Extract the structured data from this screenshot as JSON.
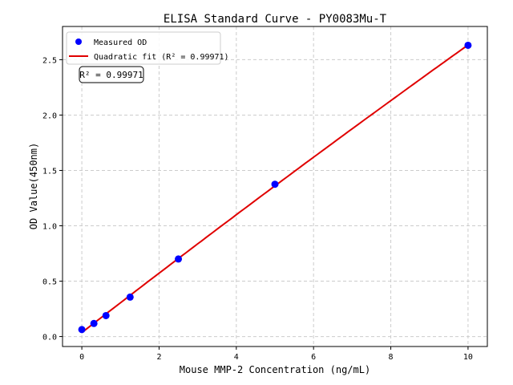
{
  "chart_data": {
    "type": "scatter",
    "title": "ELISA Standard Curve - PY0083Mu-T",
    "xlabel": "Mouse MMP-2 Concentration (ng/mL)",
    "ylabel": "OD Value(450nm)",
    "xlim": [
      -0.5,
      10.5
    ],
    "ylim": [
      -0.09,
      2.8
    ],
    "xticks": [
      0,
      2,
      4,
      6,
      8,
      10
    ],
    "yticks": [
      0.0,
      0.5,
      1.0,
      1.5,
      2.0,
      2.5
    ],
    "ytick_labels": [
      "0.0",
      "0.5",
      "1.0",
      "1.5",
      "2.0",
      "2.5"
    ],
    "grid": true,
    "legend_placement": "top-left",
    "series": [
      {
        "name": "Measured OD",
        "kind": "scatter",
        "color": "#0000ff",
        "x": [
          0,
          0.3125,
          0.625,
          1.25,
          2.5,
          5,
          10
        ],
        "y": [
          0.063,
          0.118,
          0.189,
          0.356,
          0.7,
          1.375,
          2.63
        ]
      },
      {
        "name": "Quadratic fit (R² = 0.99971)",
        "kind": "line",
        "color": "#e00000"
      }
    ],
    "annotation": "R² = 0.99971"
  }
}
